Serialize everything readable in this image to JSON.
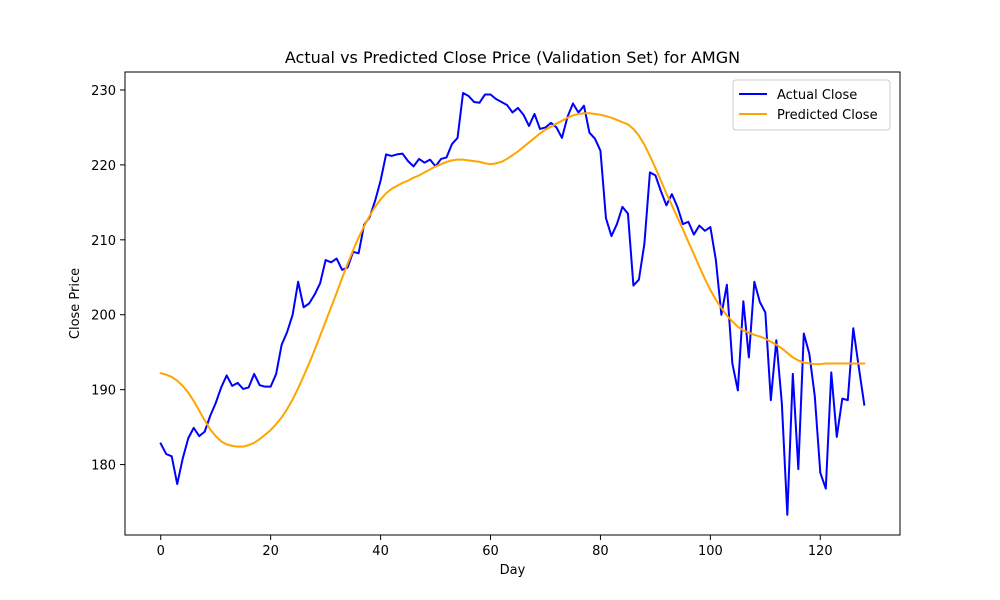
{
  "chart_data": {
    "type": "line",
    "title": "Actual vs Predicted Close Price (Validation Set) for AMGN",
    "xlabel": "Day",
    "ylabel": "Close Price",
    "xlim": [
      -6.5,
      134.5
    ],
    "ylim": [
      170.6,
      232.4
    ],
    "xticks": [
      0,
      20,
      40,
      60,
      80,
      100,
      120
    ],
    "yticks": [
      180,
      190,
      200,
      210,
      220,
      230
    ],
    "grid": false,
    "legend_position": "top-right",
    "series": [
      {
        "name": "Actual Close",
        "color": "#0000ff",
        "x": [
          0,
          1,
          2,
          3,
          4,
          5,
          6,
          7,
          8,
          9,
          10,
          11,
          12,
          13,
          14,
          15,
          16,
          17,
          18,
          19,
          20,
          21,
          22,
          23,
          24,
          25,
          26,
          27,
          28,
          29,
          30,
          31,
          32,
          33,
          34,
          35,
          36,
          37,
          38,
          39,
          40,
          41,
          42,
          43,
          44,
          45,
          46,
          47,
          48,
          49,
          50,
          51,
          52,
          53,
          54,
          55,
          56,
          57,
          58,
          59,
          60,
          61,
          62,
          63,
          64,
          65,
          66,
          67,
          68,
          69,
          70,
          71,
          72,
          73,
          74,
          75,
          76,
          77,
          78,
          79,
          80,
          81,
          82,
          83,
          84,
          85,
          86,
          87,
          88,
          89,
          90,
          91,
          92,
          93,
          94,
          95,
          96,
          97,
          98,
          99,
          100,
          101,
          102,
          103,
          104,
          105,
          106,
          107,
          108,
          109,
          110,
          111,
          112,
          113,
          114,
          115,
          116,
          117,
          118,
          119,
          120,
          121,
          122,
          123,
          124,
          125,
          126,
          127,
          128
        ],
        "values": [
          182.8,
          181.4,
          181.1,
          177.4,
          180.8,
          183.5,
          184.9,
          183.8,
          184.4,
          186.5,
          188.2,
          190.3,
          191.9,
          190.5,
          190.9,
          190.1,
          190.3,
          192.1,
          190.6,
          190.4,
          190.4,
          192.1,
          196.0,
          197.7,
          200.0,
          204.4,
          201.0,
          201.5,
          202.7,
          204.2,
          207.3,
          207.0,
          207.5,
          206.0,
          206.3,
          208.4,
          208.2,
          212.0,
          213.0,
          215.2,
          217.9,
          221.4,
          221.2,
          221.4,
          221.5,
          220.5,
          219.8,
          220.8,
          220.3,
          220.7,
          219.8,
          220.8,
          221.0,
          222.8,
          223.6,
          229.6,
          229.2,
          228.4,
          228.3,
          229.4,
          229.4,
          228.8,
          228.4,
          228.0,
          227.0,
          227.6,
          226.7,
          225.2,
          226.8,
          224.8,
          225.0,
          225.6,
          225.0,
          223.6,
          226.4,
          228.2,
          227.0,
          227.9,
          224.3,
          223.5,
          221.9,
          212.9,
          210.5,
          212.1,
          214.4,
          213.5,
          203.9,
          204.7,
          209.5,
          219.0,
          218.6,
          216.5,
          214.6,
          216.1,
          214.4,
          212.1,
          212.4,
          210.7,
          211.9,
          211.2,
          211.7,
          207.3,
          200.0,
          204.0,
          193.5,
          189.9,
          201.8,
          194.3,
          204.4,
          201.7,
          200.3,
          188.6,
          196.6,
          188.2,
          173.3,
          192.1,
          179.4,
          197.5,
          194.8,
          189.1,
          178.9,
          176.8,
          192.3,
          183.7,
          188.8,
          188.6,
          198.2,
          193.0,
          188.0
        ]
      },
      {
        "name": "Predicted Close",
        "color": "#ffa500",
        "x": [
          0,
          1,
          2,
          3,
          4,
          5,
          6,
          7,
          8,
          9,
          10,
          11,
          12,
          13,
          14,
          15,
          16,
          17,
          18,
          19,
          20,
          21,
          22,
          23,
          24,
          25,
          26,
          27,
          28,
          29,
          30,
          31,
          32,
          33,
          34,
          35,
          36,
          37,
          38,
          39,
          40,
          41,
          42,
          43,
          44,
          45,
          46,
          47,
          48,
          49,
          50,
          51,
          52,
          53,
          54,
          55,
          56,
          57,
          58,
          59,
          60,
          61,
          62,
          63,
          64,
          65,
          66,
          67,
          68,
          69,
          70,
          71,
          72,
          73,
          74,
          75,
          76,
          77,
          78,
          79,
          80,
          81,
          82,
          83,
          84,
          85,
          86,
          87,
          88,
          89,
          90,
          91,
          92,
          93,
          94,
          95,
          96,
          97,
          98,
          99,
          100,
          101,
          102,
          103,
          104,
          105,
          106,
          107,
          108,
          109,
          110,
          111,
          112,
          113,
          114,
          115,
          116,
          117,
          118,
          119,
          120,
          121,
          122,
          123,
          124,
          125,
          126,
          127,
          128
        ],
        "values": [
          192.2,
          192.0,
          191.7,
          191.2,
          190.5,
          189.6,
          188.5,
          187.2,
          185.9,
          184.7,
          183.8,
          183.1,
          182.7,
          182.5,
          182.4,
          182.4,
          182.6,
          182.9,
          183.4,
          184.0,
          184.6,
          185.4,
          186.3,
          187.4,
          188.7,
          190.2,
          191.8,
          193.5,
          195.3,
          197.2,
          199.1,
          201.0,
          202.9,
          204.9,
          206.8,
          208.6,
          210.3,
          211.8,
          213.2,
          214.4,
          215.4,
          216.2,
          216.8,
          217.2,
          217.6,
          217.9,
          218.3,
          218.6,
          219.0,
          219.4,
          219.8,
          220.1,
          220.4,
          220.6,
          220.7,
          220.7,
          220.6,
          220.5,
          220.4,
          220.2,
          220.1,
          220.2,
          220.4,
          220.8,
          221.3,
          221.8,
          222.4,
          223.0,
          223.6,
          224.2,
          224.7,
          225.1,
          225.5,
          225.9,
          226.3,
          226.6,
          226.8,
          226.9,
          226.9,
          226.8,
          226.7,
          226.5,
          226.3,
          226.0,
          225.7,
          225.4,
          224.8,
          223.9,
          222.7,
          221.2,
          219.6,
          217.9,
          216.2,
          214.6,
          213.0,
          211.4,
          209.7,
          208.1,
          206.4,
          204.8,
          203.3,
          202.0,
          200.9,
          199.9,
          199.1,
          198.4,
          197.9,
          197.6,
          197.3,
          197.1,
          196.8,
          196.4,
          196.0,
          195.5,
          194.9,
          194.3,
          193.9,
          193.6,
          193.5,
          193.4,
          193.4,
          193.5,
          193.5,
          193.5,
          193.5,
          193.5,
          193.5,
          193.5,
          193.5
        ]
      }
    ]
  }
}
